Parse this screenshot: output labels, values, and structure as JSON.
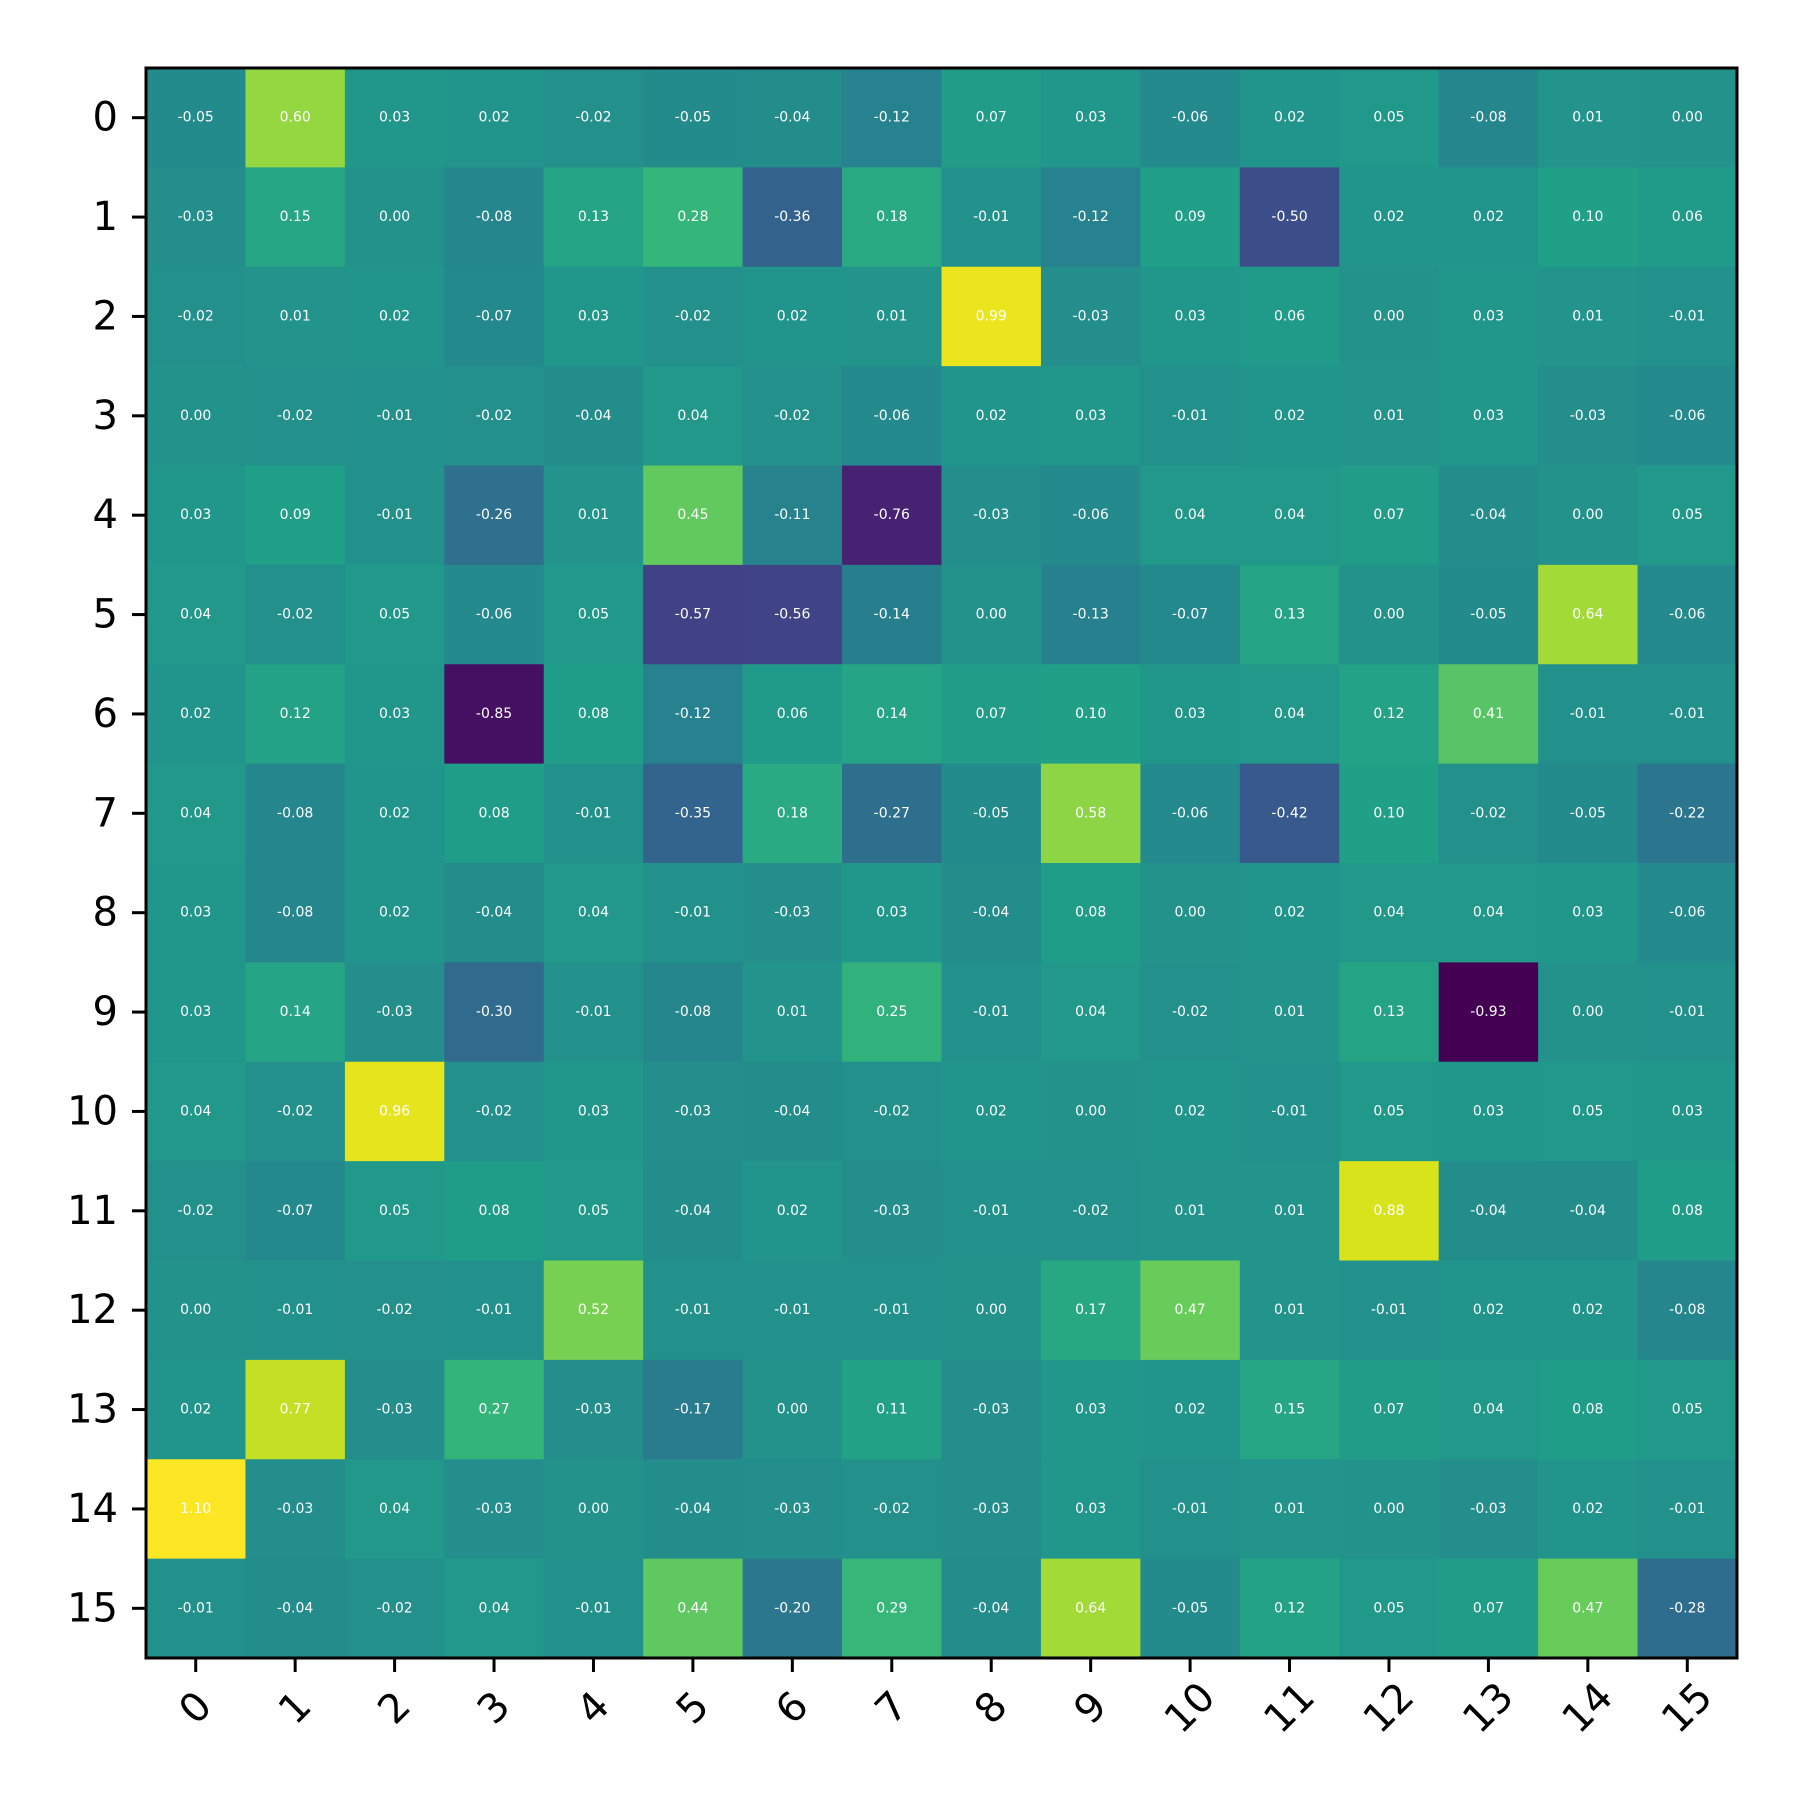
{
  "chart_data": {
    "type": "heatmap",
    "title": "",
    "xlabel": "",
    "ylabel": "",
    "colormap": "viridis",
    "vmin": -0.93,
    "vmax": 1.1,
    "x_ticks": [
      "0",
      "1",
      "2",
      "3",
      "4",
      "5",
      "6",
      "7",
      "8",
      "9",
      "10",
      "11",
      "12",
      "13",
      "14",
      "15"
    ],
    "y_ticks": [
      "0",
      "1",
      "2",
      "3",
      "4",
      "5",
      "6",
      "7",
      "8",
      "9",
      "10",
      "11",
      "12",
      "13",
      "14",
      "15"
    ],
    "values": [
      [
        -0.05,
        0.6,
        0.03,
        0.02,
        -0.02,
        -0.05,
        -0.04,
        -0.12,
        0.07,
        0.03,
        -0.06,
        0.02,
        0.05,
        -0.08,
        0.01,
        -0.0
      ],
      [
        -0.03,
        0.15,
        -0.0,
        -0.08,
        0.13,
        0.28,
        -0.36,
        0.18,
        -0.01,
        -0.12,
        0.09,
        -0.5,
        0.02,
        0.02,
        0.1,
        0.06
      ],
      [
        -0.02,
        0.01,
        0.02,
        -0.07,
        0.03,
        -0.02,
        0.02,
        0.01,
        0.99,
        -0.03,
        0.03,
        0.06,
        0.0,
        0.03,
        0.01,
        -0.01
      ],
      [
        -0.0,
        -0.02,
        -0.01,
        -0.02,
        -0.04,
        0.04,
        -0.02,
        -0.06,
        0.02,
        0.03,
        -0.01,
        0.02,
        0.01,
        0.03,
        -0.03,
        -0.06
      ],
      [
        0.03,
        0.09,
        -0.01,
        -0.26,
        0.01,
        0.45,
        -0.11,
        -0.76,
        -0.03,
        -0.06,
        0.04,
        0.04,
        0.07,
        -0.04,
        0.0,
        0.05
      ],
      [
        0.04,
        -0.02,
        0.05,
        -0.06,
        0.05,
        -0.57,
        -0.56,
        -0.14,
        -0.0,
        -0.13,
        -0.07,
        0.13,
        -0.0,
        -0.05,
        0.64,
        -0.06
      ],
      [
        0.02,
        0.12,
        0.03,
        -0.85,
        0.08,
        -0.12,
        0.06,
        0.14,
        0.07,
        0.1,
        0.03,
        0.04,
        0.12,
        0.41,
        -0.01,
        -0.01
      ],
      [
        0.04,
        -0.08,
        0.02,
        0.08,
        -0.01,
        -0.35,
        0.18,
        -0.27,
        -0.05,
        0.58,
        -0.06,
        -0.42,
        0.1,
        -0.02,
        -0.05,
        -0.22
      ],
      [
        0.03,
        -0.08,
        0.02,
        -0.04,
        0.04,
        -0.01,
        -0.03,
        0.03,
        -0.04,
        0.08,
        0.0,
        0.02,
        0.04,
        0.04,
        0.03,
        -0.06
      ],
      [
        0.03,
        0.14,
        -0.03,
        -0.3,
        -0.01,
        -0.08,
        0.01,
        0.25,
        -0.01,
        0.04,
        -0.02,
        0.01,
        0.13,
        -0.93,
        0.0,
        -0.01
      ],
      [
        0.04,
        -0.02,
        0.96,
        -0.02,
        0.03,
        -0.03,
        -0.04,
        -0.02,
        0.02,
        -0.0,
        0.02,
        -0.01,
        0.05,
        0.03,
        0.05,
        0.03
      ],
      [
        -0.02,
        -0.07,
        0.05,
        0.08,
        0.05,
        -0.04,
        0.02,
        -0.03,
        -0.01,
        -0.02,
        0.01,
        0.01,
        0.88,
        -0.04,
        -0.04,
        0.08
      ],
      [
        -0.0,
        -0.01,
        -0.02,
        -0.01,
        0.52,
        -0.01,
        -0.01,
        -0.01,
        0.0,
        0.17,
        0.47,
        0.01,
        -0.01,
        0.02,
        0.02,
        -0.08
      ],
      [
        0.02,
        0.77,
        -0.03,
        0.27,
        -0.03,
        -0.17,
        0.0,
        0.11,
        -0.03,
        0.03,
        0.02,
        0.15,
        0.07,
        0.04,
        0.08,
        0.05
      ],
      [
        1.1,
        -0.03,
        0.04,
        -0.03,
        -0.0,
        -0.04,
        -0.03,
        -0.02,
        -0.03,
        0.03,
        -0.01,
        0.01,
        -0.0,
        -0.03,
        0.02,
        -0.01
      ],
      [
        -0.01,
        -0.04,
        -0.02,
        0.04,
        -0.01,
        0.44,
        -0.2,
        0.29,
        -0.04,
        0.64,
        -0.05,
        0.12,
        0.05,
        0.07,
        0.47,
        -0.28
      ]
    ]
  }
}
